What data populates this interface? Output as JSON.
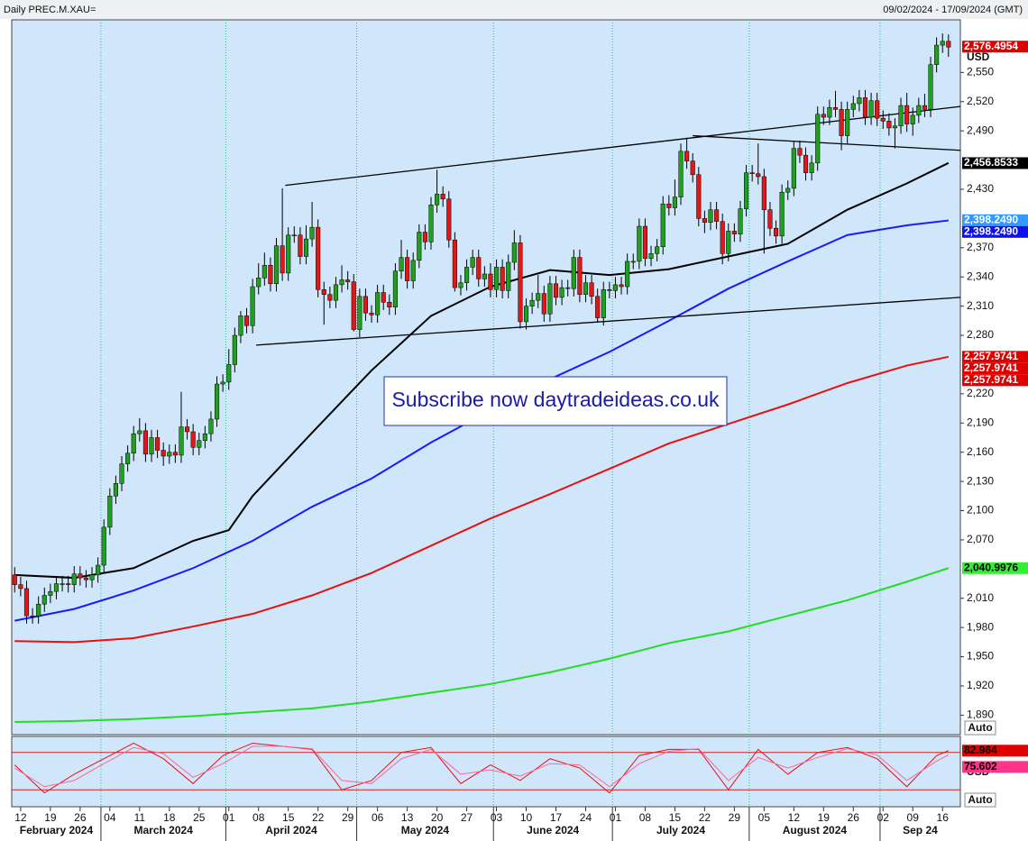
{
  "chart_data": {
    "type": "candlestick",
    "title": "Daily PREC.M.XAU=",
    "subtitle": "09/02/2024 - 17/09/2024 (GMT)",
    "y_unit": "USD",
    "auto_label": "Auto",
    "annotation": "Subscribe now daytradeideas.co.uk",
    "up_color": "#1fa01f",
    "down_color": "#e01818",
    "xlim": [
      -0.5,
      159
    ],
    "ylim": [
      1870,
      2604
    ],
    "open": [
      2034,
      2024,
      2020,
      1992,
      1992,
      2004,
      2013,
      2017,
      2025,
      2025,
      2024,
      2035,
      2031,
      2029,
      2034,
      2044,
      2083,
      2115,
      2128,
      2148,
      2159,
      2179,
      2182,
      2158,
      2175,
      2162,
      2156,
      2160,
      2157,
      2186,
      2181,
      2165,
      2172,
      2179,
      2194,
      2230,
      2232,
      2250,
      2280,
      2300,
      2290,
      2330,
      2339,
      2352,
      2333,
      2372,
      2344,
      2383,
      2383,
      2361,
      2379,
      2391,
      2327,
      2322,
      2316,
      2332,
      2337,
      2335,
      2286,
      2320,
      2303,
      2301,
      2324,
      2314,
      2309,
      2346,
      2360,
      2336,
      2357,
      2386,
      2376,
      2414,
      2425,
      2420,
      2378,
      2329,
      2334,
      2350,
      2360,
      2338,
      2343,
      2327,
      2350,
      2326,
      2355,
      2375,
      2294,
      2310,
      2316,
      2323,
      2302,
      2333,
      2319,
      2329,
      2328,
      2360,
      2322,
      2334,
      2320,
      2298,
      2327,
      2326,
      2332,
      2330,
      2356,
      2356,
      2392,
      2359,
      2364,
      2371,
      2415,
      2411,
      2422,
      2469,
      2459,
      2445,
      2400,
      2396,
      2409,
      2397,
      2364,
      2387,
      2384,
      2410,
      2447,
      2446,
      2443,
      2409,
      2390,
      2382,
      2427,
      2431,
      2472,
      2465,
      2447,
      2457,
      2507,
      2504,
      2514,
      2512,
      2485,
      2512,
      2518,
      2524,
      2504,
      2521,
      2503,
      2500,
      2493,
      2495,
      2516,
      2497,
      2506,
      2516,
      2512,
      2558,
      2578,
      2582
    ],
    "high": [
      2042,
      2032,
      2028,
      2000,
      2012,
      2021,
      2025,
      2033,
      2033,
      2033,
      2043,
      2043,
      2039,
      2042,
      2052,
      2091,
      2123,
      2136,
      2156,
      2167,
      2187,
      2195,
      2190,
      2183,
      2183,
      2170,
      2168,
      2168,
      2222,
      2194,
      2189,
      2180,
      2187,
      2202,
      2238,
      2240,
      2266,
      2288,
      2305,
      2308,
      2338,
      2354,
      2365,
      2360,
      2380,
      2431,
      2391,
      2392,
      2391,
      2393,
      2417,
      2399,
      2335,
      2330,
      2340,
      2352,
      2346,
      2343,
      2328,
      2328,
      2311,
      2332,
      2332,
      2322,
      2354,
      2378,
      2368,
      2365,
      2394,
      2394,
      2422,
      2450,
      2433,
      2428,
      2386,
      2342,
      2358,
      2368,
      2368,
      2351,
      2354,
      2358,
      2358,
      2363,
      2388,
      2383,
      2318,
      2324,
      2342,
      2331,
      2341,
      2341,
      2337,
      2337,
      2368,
      2368,
      2342,
      2342,
      2328,
      2335,
      2335,
      2340,
      2340,
      2364,
      2364,
      2400,
      2400,
      2372,
      2379,
      2423,
      2424,
      2440,
      2477,
      2483,
      2467,
      2453,
      2408,
      2417,
      2417,
      2405,
      2395,
      2395,
      2418,
      2455,
      2455,
      2477,
      2451,
      2417,
      2398,
      2435,
      2439,
      2480,
      2480,
      2473,
      2465,
      2515,
      2515,
      2522,
      2531,
      2520,
      2520,
      2526,
      2532,
      2532,
      2529,
      2529,
      2511,
      2508,
      2503,
      2524,
      2529,
      2514,
      2524,
      2528,
      2566,
      2586,
      2590,
      2589
    ],
    "low": [
      2016,
      2012,
      1984,
      1984,
      1984,
      1996,
      2005,
      2009,
      2017,
      2016,
      2016,
      2023,
      2021,
      2021,
      2026,
      2036,
      2075,
      2107,
      2120,
      2140,
      2151,
      2171,
      2150,
      2150,
      2154,
      2146,
      2148,
      2149,
      2149,
      2173,
      2157,
      2157,
      2164,
      2171,
      2186,
      2222,
      2224,
      2242,
      2272,
      2282,
      2282,
      2322,
      2331,
      2325,
      2325,
      2336,
      2336,
      2375,
      2353,
      2353,
      2371,
      2319,
      2291,
      2308,
      2308,
      2324,
      2327,
      2284,
      2278,
      2295,
      2293,
      2293,
      2306,
      2301,
      2301,
      2338,
      2328,
      2328,
      2349,
      2368,
      2368,
      2406,
      2412,
      2370,
      2325,
      2321,
      2326,
      2342,
      2330,
      2330,
      2319,
      2319,
      2318,
      2318,
      2347,
      2287,
      2286,
      2302,
      2308,
      2294,
      2294,
      2311,
      2311,
      2320,
      2320,
      2314,
      2314,
      2312,
      2293,
      2290,
      2318,
      2318,
      2322,
      2322,
      2348,
      2348,
      2351,
      2351,
      2356,
      2363,
      2403,
      2403,
      2414,
      2451,
      2437,
      2392,
      2385,
      2388,
      2389,
      2353,
      2356,
      2376,
      2376,
      2402,
      2438,
      2435,
      2364,
      2382,
      2374,
      2374,
      2419,
      2423,
      2457,
      2439,
      2439,
      2449,
      2496,
      2496,
      2504,
      2470,
      2477,
      2504,
      2510,
      2496,
      2496,
      2495,
      2492,
      2485,
      2472,
      2487,
      2489,
      2485,
      2498,
      2504,
      2504,
      2550,
      2570,
      2566
    ],
    "close": [
      2024,
      2020,
      1992,
      1992,
      2004,
      2013,
      2017,
      2025,
      2025,
      2024,
      2035,
      2031,
      2029,
      2034,
      2044,
      2083,
      2115,
      2128,
      2148,
      2159,
      2179,
      2182,
      2158,
      2175,
      2162,
      2156,
      2160,
      2157,
      2186,
      2181,
      2165,
      2172,
      2179,
      2194,
      2230,
      2232,
      2250,
      2280,
      2300,
      2290,
      2330,
      2339,
      2352,
      2333,
      2372,
      2344,
      2383,
      2383,
      2361,
      2379,
      2391,
      2327,
      2322,
      2316,
      2332,
      2337,
      2335,
      2286,
      2320,
      2303,
      2301,
      2324,
      2314,
      2309,
      2346,
      2360,
      2336,
      2357,
      2386,
      2376,
      2414,
      2425,
      2420,
      2378,
      2329,
      2334,
      2350,
      2360,
      2338,
      2343,
      2327,
      2350,
      2326,
      2355,
      2375,
      2294,
      2310,
      2316,
      2323,
      2302,
      2333,
      2319,
      2329,
      2328,
      2360,
      2322,
      2334,
      2320,
      2298,
      2327,
      2326,
      2332,
      2330,
      2356,
      2356,
      2392,
      2359,
      2364,
      2371,
      2415,
      2411,
      2422,
      2469,
      2459,
      2445,
      2400,
      2396,
      2409,
      2397,
      2364,
      2387,
      2384,
      2410,
      2447,
      2446,
      2443,
      2409,
      2390,
      2382,
      2427,
      2431,
      2472,
      2465,
      2447,
      2457,
      2507,
      2504,
      2514,
      2512,
      2485,
      2512,
      2518,
      2524,
      2504,
      2521,
      2503,
      2500,
      2493,
      2495,
      2516,
      2497,
      2506,
      2516,
      2512,
      2558,
      2578,
      2582,
      2576
    ],
    "yticks": [
      {
        "value": 2550,
        "label": "2,550"
      },
      {
        "value": 2520,
        "label": "2,520"
      },
      {
        "value": 2490,
        "label": "2,490"
      },
      {
        "value": 2430,
        "label": "2,430"
      },
      {
        "value": 2370,
        "label": "2,370"
      },
      {
        "value": 2340,
        "label": "2,340"
      },
      {
        "value": 2310,
        "label": "2,310"
      },
      {
        "value": 2280,
        "label": "2,280"
      },
      {
        "value": 2220,
        "label": "2,220"
      },
      {
        "value": 2190,
        "label": "2,190"
      },
      {
        "value": 2160,
        "label": "2,160"
      },
      {
        "value": 2130,
        "label": "2,130"
      },
      {
        "value": 2100,
        "label": "2,100"
      },
      {
        "value": 2070,
        "label": "2,070"
      },
      {
        "value": 2010,
        "label": "2,010"
      },
      {
        "value": 1980,
        "label": "1,980"
      },
      {
        "value": 1950,
        "label": "1,950"
      },
      {
        "value": 1920,
        "label": "1,920"
      },
      {
        "value": 1890,
        "label": "1,890"
      }
    ],
    "xticks": [
      {
        "value": 1,
        "label": "12"
      },
      {
        "value": 6,
        "label": "19"
      },
      {
        "value": 11,
        "label": "26"
      },
      {
        "value": 16,
        "label": "04"
      },
      {
        "value": 21,
        "label": "11"
      },
      {
        "value": 26,
        "label": "18"
      },
      {
        "value": 31,
        "label": "25"
      },
      {
        "value": 36,
        "label": "01"
      },
      {
        "value": 41,
        "label": "08"
      },
      {
        "value": 46,
        "label": "15"
      },
      {
        "value": 51,
        "label": "22"
      },
      {
        "value": 56,
        "label": "29"
      },
      {
        "value": 61,
        "label": "06"
      },
      {
        "value": 66,
        "label": "13"
      },
      {
        "value": 71,
        "label": "20"
      },
      {
        "value": 76,
        "label": "27"
      },
      {
        "value": 81,
        "label": "03"
      },
      {
        "value": 86,
        "label": "10"
      },
      {
        "value": 91,
        "label": "17"
      },
      {
        "value": 96,
        "label": "24"
      },
      {
        "value": 101,
        "label": "01"
      },
      {
        "value": 106,
        "label": "08"
      },
      {
        "value": 111,
        "label": "15"
      },
      {
        "value": 116,
        "label": "22"
      },
      {
        "value": 121,
        "label": "29"
      },
      {
        "value": 126,
        "label": "05"
      },
      {
        "value": 131,
        "label": "12"
      },
      {
        "value": 136,
        "label": "19"
      },
      {
        "value": 141,
        "label": "26"
      },
      {
        "value": 146,
        "label": "02"
      },
      {
        "value": 151,
        "label": "09"
      },
      {
        "value": 156,
        "label": "16"
      }
    ],
    "months": [
      {
        "label": "February 2024",
        "start": 0
      },
      {
        "label": "March 2024",
        "start": 15
      },
      {
        "label": "April 2024",
        "start": 36
      },
      {
        "label": "May 2024",
        "start": 58
      },
      {
        "label": "June 2024",
        "start": 81
      },
      {
        "label": "July 2024",
        "start": 101
      },
      {
        "label": "August 2024",
        "start": 124
      },
      {
        "label": "Sep 24",
        "start": 146
      }
    ],
    "moving_averages": [
      {
        "color": "#000000",
        "x": [
          0,
          10,
          20,
          30,
          36,
          40,
          50,
          60,
          70,
          80,
          90,
          100,
          110,
          120,
          130,
          140,
          150,
          157
        ],
        "values": [
          2034,
          2031,
          2041,
          2069,
          2080,
          2115,
          2180,
          2244,
          2300,
          2330,
          2347,
          2342,
          2348,
          2361,
          2374,
          2409,
          2436,
          2457
        ]
      },
      {
        "color": "#1a1aff",
        "x": [
          0,
          10,
          20,
          30,
          40,
          50,
          60,
          70,
          80,
          90,
          100,
          110,
          120,
          130,
          140,
          150,
          157
        ],
        "values": [
          1987,
          1999,
          2018,
          2041,
          2069,
          2104,
          2133,
          2170,
          2203,
          2235,
          2263,
          2295,
          2328,
          2356,
          2383,
          2393,
          2398
        ]
      },
      {
        "color": "#e81010",
        "x": [
          0,
          10,
          20,
          30,
          40,
          50,
          60,
          70,
          80,
          90,
          100,
          110,
          120,
          130,
          140,
          150,
          157
        ],
        "values": [
          1966,
          1965,
          1969,
          1981,
          1994,
          2013,
          2036,
          2064,
          2092,
          2117,
          2143,
          2169,
          2189,
          2209,
          2231,
          2249,
          2258
        ]
      },
      {
        "color": "#22dd22",
        "x": [
          0,
          10,
          20,
          30,
          40,
          50,
          60,
          70,
          80,
          90,
          100,
          110,
          120,
          130,
          140,
          150,
          157
        ],
        "values": [
          1883,
          1884,
          1886,
          1889,
          1893,
          1897,
          1904,
          1913,
          1922,
          1934,
          1948,
          1964,
          1976,
          1992,
          2008,
          2027,
          2041
        ]
      }
    ],
    "trend_lines": [
      {
        "x": [
          45.5,
          159
        ],
        "values": [
          2434,
          2515
        ]
      },
      {
        "x": [
          40.6,
          159
        ],
        "values": [
          2270,
          2319
        ]
      },
      {
        "x": [
          114,
          159
        ],
        "values": [
          2485,
          2470
        ]
      }
    ],
    "price_labels": [
      {
        "value": 2576.4954,
        "label": "2,576.4954",
        "color": "#e00000",
        "text_color": "#ffffff"
      },
      {
        "value": 2456.8533,
        "label": "2,456.8533",
        "color": "#000000",
        "text_color": "#ffffff"
      },
      {
        "value": 2398.249,
        "label": "2,398.2490",
        "color": "#3399ff",
        "text_color": "#ffffff"
      },
      {
        "value": 2398.249,
        "label": "2,398.2490",
        "color": "#1010ee",
        "text_color": "#ffffff"
      },
      {
        "value": 2257.9741,
        "label": "2,257.9741",
        "color": "#e00000",
        "text_color": "#ffffff"
      },
      {
        "value": 2257.9741,
        "label": "2,257.9741",
        "color": "#e00000",
        "text_color": "#ffffff"
      },
      {
        "value": 2257.9741,
        "label": "2,257.9741",
        "color": "#e00000",
        "text_color": "#ffffff"
      },
      {
        "value": 2040.9976,
        "label": "2,040.9976",
        "color": "#33ee33",
        "text_color": "#000000"
      }
    ],
    "oscillator": {
      "ylim": [
        0,
        100
      ],
      "levels": [
        80,
        20
      ],
      "series": [
        {
          "color": "#e81010",
          "x": [
            0,
            5,
            10,
            15,
            20,
            25,
            30,
            35,
            40,
            45,
            50,
            55,
            60,
            65,
            70,
            75,
            80,
            85,
            90,
            95,
            100,
            105,
            110,
            115,
            120,
            125,
            130,
            135,
            140,
            145,
            150,
            155,
            157
          ],
          "values": [
            60,
            15,
            45,
            70,
            95,
            70,
            30,
            75,
            95,
            90,
            85,
            20,
            35,
            80,
            88,
            30,
            60,
            35,
            70,
            55,
            15,
            75,
            85,
            85,
            20,
            85,
            45,
            80,
            88,
            70,
            25,
            75,
            83
          ]
        },
        {
          "color": "#ff6699",
          "x": [
            0,
            5,
            10,
            15,
            20,
            25,
            30,
            35,
            40,
            45,
            50,
            55,
            60,
            65,
            70,
            75,
            80,
            85,
            90,
            95,
            100,
            105,
            110,
            115,
            120,
            125,
            130,
            135,
            140,
            145,
            150,
            155,
            157
          ],
          "values": [
            55,
            25,
            35,
            62,
            88,
            78,
            40,
            62,
            90,
            90,
            86,
            35,
            30,
            70,
            85,
            45,
            52,
            42,
            62,
            60,
            25,
            62,
            82,
            86,
            35,
            72,
            55,
            72,
            86,
            76,
            35,
            66,
            76
          ]
        }
      ],
      "value_labels": [
        {
          "value": 82.964,
          "label": "82.964",
          "color": "#e00000"
        },
        {
          "value": 75.602,
          "label": "75.602",
          "color": "#ff3388"
        }
      ]
    }
  }
}
